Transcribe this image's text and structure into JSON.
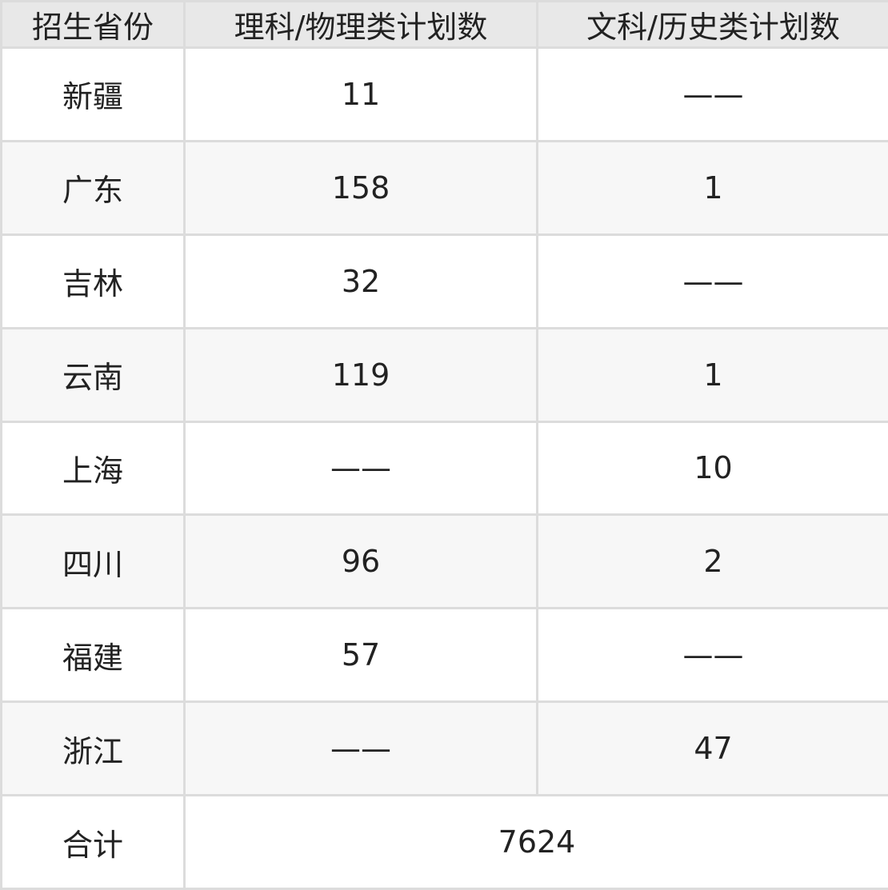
{
  "table": {
    "header": [
      "招生省份",
      "理科/物理类计划数",
      "文科/历史类计划数"
    ],
    "rows": [
      [
        "新疆",
        11,
        "——"
      ],
      [
        "广东",
        158,
        1
      ],
      [
        "吉林",
        32,
        "——"
      ],
      [
        "云南",
        119,
        1
      ],
      [
        "上海",
        "——",
        10
      ],
      [
        "四川",
        96,
        2
      ],
      [
        "福建",
        57,
        "——"
      ],
      [
        "浙江",
        "——",
        47
      ]
    ],
    "footer": [
      "合计",
      7624
    ]
  }
}
